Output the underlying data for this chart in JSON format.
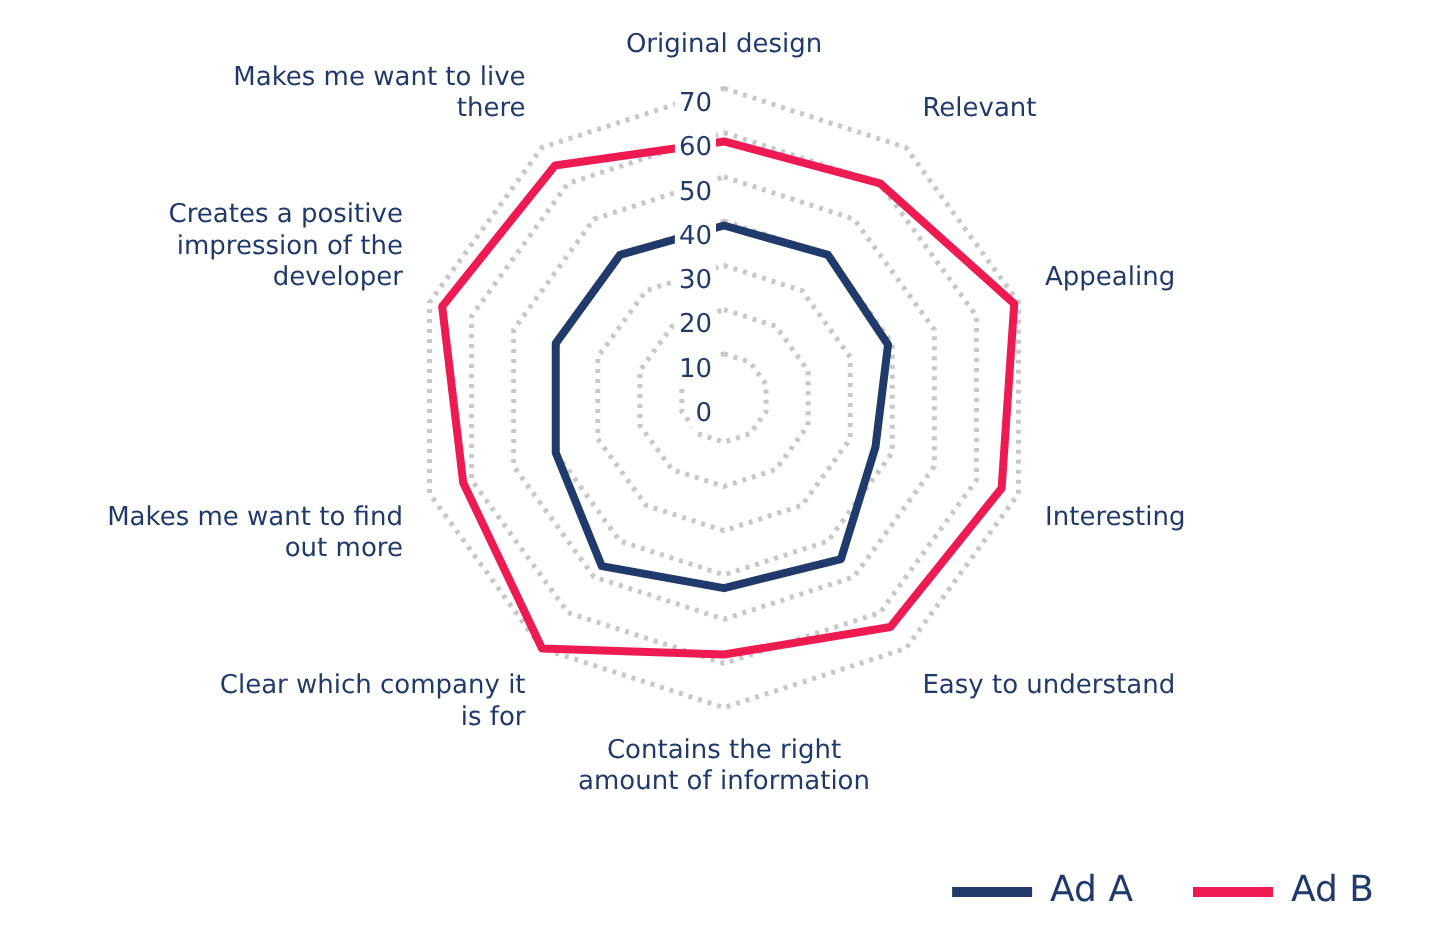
{
  "chart_data": {
    "type": "radar",
    "categories": [
      "Original design",
      "Relevant",
      "Appealing",
      "Interesting",
      "Easy to understand",
      "Contains the right amount of information",
      "Clear which company it is for",
      "Makes me want to find out more",
      "Creates a positive impression of the developer",
      "Makes me want to live there"
    ],
    "series": [
      {
        "name": "Ad A",
        "color": "#1f3a6b",
        "values": [
          39,
          40,
          39,
          36,
          45,
          43,
          47,
          40,
          40,
          40
        ]
      },
      {
        "name": "Ad B",
        "color": "#ee1a52",
        "values": [
          58,
          60,
          69,
          66,
          64,
          58,
          70,
          62,
          67,
          65
        ]
      }
    ],
    "ylim": [
      0,
      70
    ],
    "yticks": [
      0,
      10,
      20,
      30,
      40,
      50,
      60,
      70
    ],
    "grid": true,
    "legend": "bottom right",
    "marker": "none",
    "line_style": "solid"
  }
}
